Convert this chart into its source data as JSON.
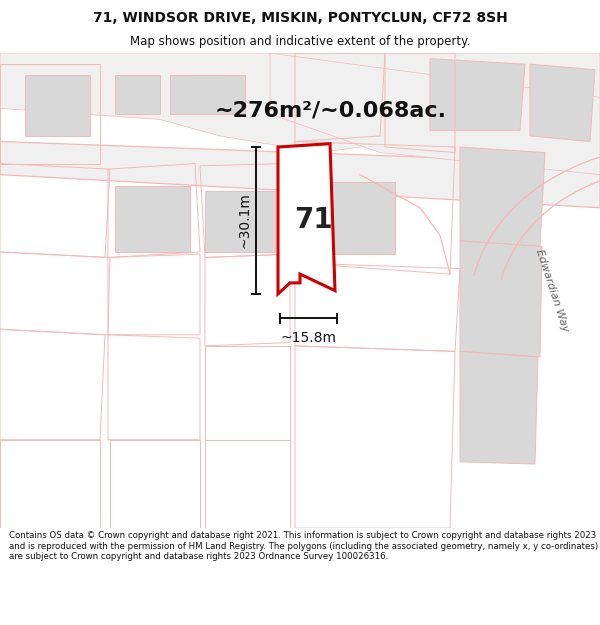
{
  "title_line1": "71, WINDSOR DRIVE, MISKIN, PONTYCLUN, CF72 8SH",
  "title_line2": "Map shows position and indicative extent of the property.",
  "area_text": "~276m²/~0.068ac.",
  "dim_vertical": "~30.1m",
  "dim_horizontal": "~15.8m",
  "label_number": "71",
  "street_label": "Edwardian Way",
  "footer": "Contains OS data © Crown copyright and database right 2021. This information is subject to Crown copyright and database rights 2023 and is reproduced with the permission of HM Land Registry. The polygons (including the associated geometry, namely x, y co-ordinates) are subject to Crown copyright and database rights 2023 Ordnance Survey 100026316.",
  "bg_color": "#ffffff",
  "map_bg": "#ffffff",
  "plot_fill": "#ffffff",
  "plot_edge": "#cc0000",
  "building_fill": "#d8d8d8",
  "road_line": "#f5b8b8",
  "parcel_line": "#f5b8b8",
  "dim_color": "#111111",
  "title_color": "#111111",
  "footer_color": "#111111",
  "area_color": "#111111"
}
